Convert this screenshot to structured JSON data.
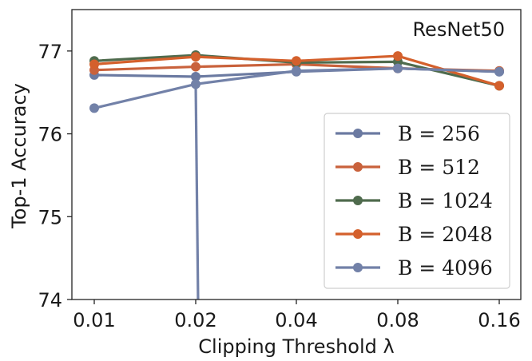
{
  "chart_data": {
    "type": "line",
    "annotation": "ResNet50",
    "xlabel": "Clipping Threshold λ",
    "ylabel": "Top-1 Accuracy",
    "x": [
      0.01,
      0.02,
      0.04,
      0.08,
      0.16
    ],
    "x_tick_labels": [
      "0.01",
      "0.02",
      "0.04",
      "0.08",
      "0.16"
    ],
    "x_scale": "log",
    "ylim": [
      74,
      77.5
    ],
    "y_ticks": [
      74,
      75,
      76,
      77
    ],
    "y_tick_labels": [
      "74",
      "75",
      "76",
      "77"
    ],
    "grid": false,
    "legend_position": "lower-right",
    "series": [
      {
        "name": "B = 256",
        "color": "#6b7aa1",
        "values": [
          76.71,
          76.69,
          76.75,
          76.79,
          76.75
        ]
      },
      {
        "name": "B = 512",
        "color": "#c9623c",
        "values": [
          76.77,
          76.81,
          76.84,
          76.79,
          76.76
        ]
      },
      {
        "name": "B = 1024",
        "color": "#4f6b4d",
        "values": [
          76.88,
          76.95,
          76.86,
          76.87,
          76.58
        ]
      },
      {
        "name": "B = 2048",
        "color": "#d4602c",
        "values": [
          76.84,
          76.93,
          76.88,
          76.94,
          76.58
        ]
      },
      {
        "name": "B = 4096",
        "color": "#7281a8",
        "values": [
          76.31,
          76.6,
          76.76,
          76.79,
          76.75
        ],
        "drop_to": 74
      }
    ]
  }
}
